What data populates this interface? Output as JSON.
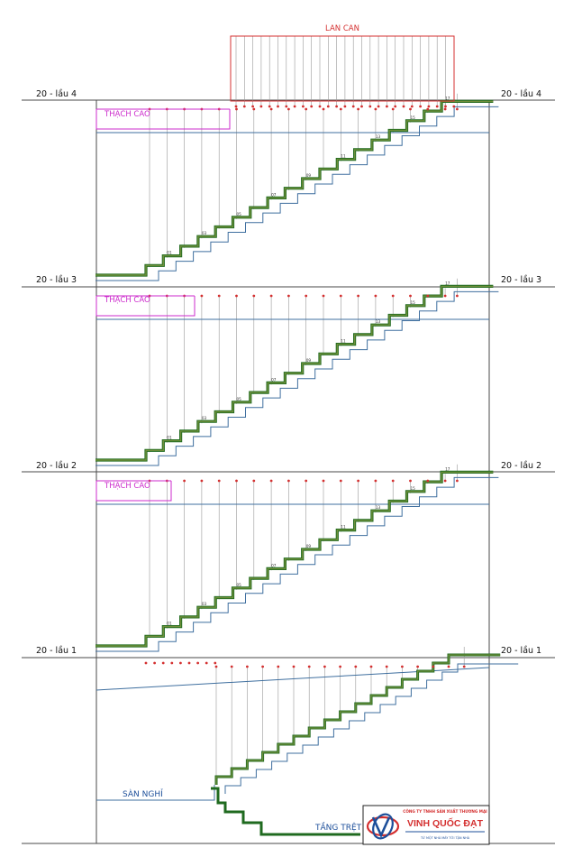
{
  "levels": {
    "floor4": "20 - lầu 4",
    "floor3": "20 - lầu 3",
    "floor2": "20 - lầu 2",
    "floor1": "20 - lầu 1"
  },
  "labels": {
    "railing": "LAN CAN",
    "gypsum": "THẠCH CAO",
    "landing": "SÀN NGHỈ",
    "ground": "TẦNG TRỆT"
  },
  "logo": {
    "company_line": "CÔNG TY TNHH SẢN XUẤT THƯƠNG MẠI",
    "brand": "VINH QUỐC ĐẠT",
    "tagline": "TỪ MỘT NHÀ MÁY TỚI TẬN NHÀ"
  },
  "step_numbers": [
    "01",
    "03",
    "05",
    "07",
    "09",
    "11",
    "13",
    "15",
    "17"
  ],
  "colors": {
    "structure": "#4a4a4a",
    "stair_edge": "#1f6a1f",
    "stair_fill": "#6f8f3a",
    "soffit": "#3f6f9f",
    "railing": "#d43030",
    "gypsum": "#cc2bcc",
    "post": "#9a9a9a",
    "landing_label": "#1d4f9a"
  }
}
